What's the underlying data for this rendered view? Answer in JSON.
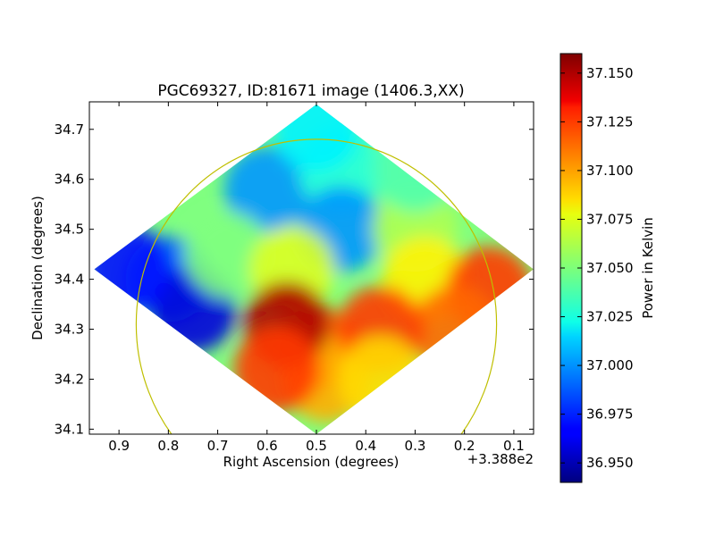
{
  "chart_data": {
    "type": "heatmap",
    "title": "PGC69327, ID:81671 image (1406.3,XX)",
    "xlabel": "Right Ascension (degrees)",
    "ylabel": "Declination (degrees)",
    "x_offset_label": "+3.388e2",
    "x_offset_value": 338.8,
    "xlim": [
      0.96,
      0.06
    ],
    "ylim": [
      34.09,
      34.755
    ],
    "x_ticks": [
      0.9,
      0.8,
      0.7,
      0.6,
      0.5,
      0.4,
      0.3,
      0.2,
      0.1
    ],
    "x_tick_labels": [
      "0.9",
      "0.8",
      "0.7",
      "0.6",
      "0.5",
      "0.4",
      "0.3",
      "0.2",
      "0.1"
    ],
    "y_ticks": [
      34.1,
      34.2,
      34.3,
      34.4,
      34.5,
      34.6,
      34.7
    ],
    "y_tick_labels": [
      "34.1",
      "34.2",
      "34.3",
      "34.4",
      "34.5",
      "34.6",
      "34.7"
    ],
    "colorbar": {
      "label": "Power in Kelvin",
      "range": [
        36.94,
        37.16
      ],
      "ticks": [
        36.95,
        36.975,
        37.0,
        37.025,
        37.05,
        37.075,
        37.1,
        37.125,
        37.15
      ],
      "tick_labels": [
        "36.950",
        "36.975",
        "37.000",
        "37.025",
        "37.050",
        "37.075",
        "37.100",
        "37.125",
        "37.150"
      ],
      "colormap": "jet"
    },
    "footprint_corners": [
      {
        "ra": 0.95,
        "dec": 34.42
      },
      {
        "ra": 0.5,
        "dec": 34.75
      },
      {
        "ra": 0.06,
        "dec": 34.42
      },
      {
        "ra": 0.5,
        "dec": 34.09
      }
    ],
    "circle": {
      "center_ra": 0.5,
      "center_dec": 34.31,
      "radius_ra": 0.365,
      "radius_dec": 0.37,
      "color": "#bfbf00"
    },
    "regions": [
      {
        "ra": 0.8,
        "dec": 34.4,
        "value": 36.99
      },
      {
        "ra": 0.75,
        "dec": 34.34,
        "value": 36.96
      },
      {
        "ra": 0.88,
        "dec": 34.42,
        "value": 36.97
      },
      {
        "ra": 0.6,
        "dec": 34.58,
        "value": 37.0
      },
      {
        "ra": 0.45,
        "dec": 34.62,
        "value": 37.03
      },
      {
        "ra": 0.5,
        "dec": 34.7,
        "value": 37.02
      },
      {
        "ra": 0.45,
        "dec": 34.5,
        "value": 37.0
      },
      {
        "ra": 0.68,
        "dec": 34.45,
        "value": 37.05
      },
      {
        "ra": 0.55,
        "dec": 34.42,
        "value": 37.07
      },
      {
        "ra": 0.3,
        "dec": 34.5,
        "value": 37.06
      },
      {
        "ra": 0.28,
        "dec": 34.4,
        "value": 37.08
      },
      {
        "ra": 0.15,
        "dec": 34.38,
        "value": 37.12
      },
      {
        "ra": 0.22,
        "dec": 34.3,
        "value": 37.11
      },
      {
        "ra": 0.5,
        "dec": 34.26,
        "value": 37.11
      },
      {
        "ra": 0.48,
        "dec": 34.2,
        "value": 37.095
      },
      {
        "ra": 0.56,
        "dec": 34.31,
        "value": 37.15
      },
      {
        "ra": 0.58,
        "dec": 34.22,
        "value": 37.12
      },
      {
        "ra": 0.37,
        "dec": 34.3,
        "value": 37.12
      },
      {
        "ra": 0.37,
        "dec": 34.2,
        "value": 37.085
      },
      {
        "ra": 0.3,
        "dec": 34.62,
        "value": 37.04
      }
    ]
  }
}
